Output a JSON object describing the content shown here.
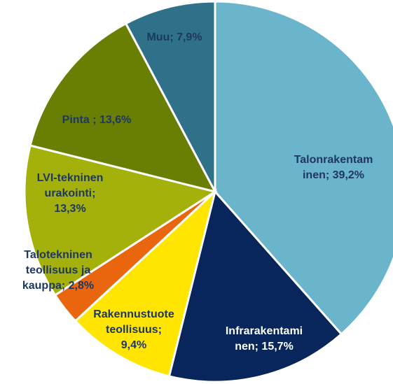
{
  "chart_data": {
    "type": "pie",
    "values": [
      39.2,
      15.7,
      9.4,
      2.8,
      13.3,
      13.6,
      7.9
    ],
    "value_labels": [
      [
        "Talonrakentam",
        "inen; 39,2%"
      ],
      [
        "Infrarakentami",
        "nen; 15,7%"
      ],
      [
        "Rakennustuote",
        "teollisuus;",
        "9,4%"
      ],
      [
        "Talotekninen",
        "teollisuus ja",
        "kauppa; 2,8%"
      ],
      [
        "LVI-tekninen",
        "urakointi;",
        "13,3%"
      ],
      [
        "Pinta ; 13,6%"
      ],
      [
        "Muu; 7,9%"
      ]
    ],
    "colors": [
      "#6bb5cc",
      "#08265b",
      "#ffe500",
      "#e9650e",
      "#a3b10a",
      "#687f04",
      "#2f7189"
    ]
  }
}
